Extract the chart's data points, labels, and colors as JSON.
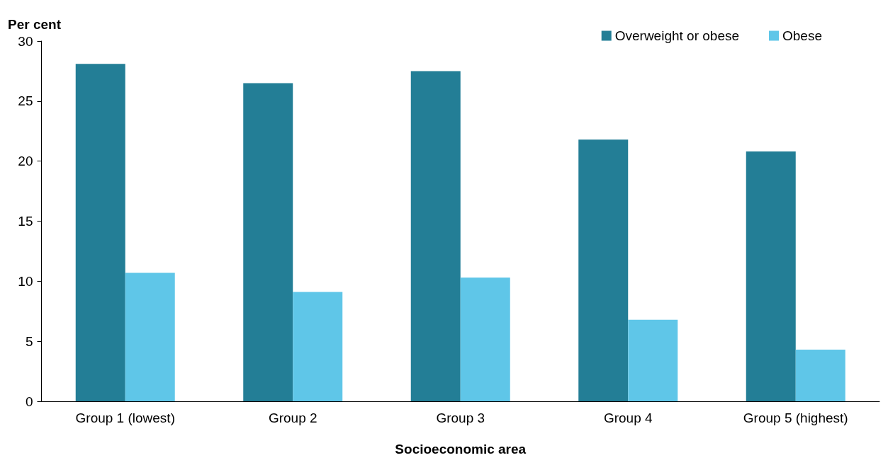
{
  "chart_data": {
    "type": "bar",
    "xlabel": "Socioeconomic area",
    "ylabel": "Per cent",
    "categories": [
      "Group 1 (lowest)",
      "Group 2",
      "Group 3",
      "Group 4",
      "Group 5 (highest)"
    ],
    "series": [
      {
        "name": "Overweight or obese",
        "color": "#237e96",
        "values": [
          28.1,
          26.5,
          27.5,
          21.8,
          20.8
        ]
      },
      {
        "name": "Obese",
        "color": "#5fc6e8",
        "values": [
          10.7,
          9.1,
          10.3,
          6.8,
          4.3
        ]
      }
    ],
    "ylim": [
      0,
      30
    ],
    "yticks": [
      0,
      5,
      10,
      15,
      20,
      25,
      30
    ],
    "grid": false,
    "legend": "top right"
  }
}
